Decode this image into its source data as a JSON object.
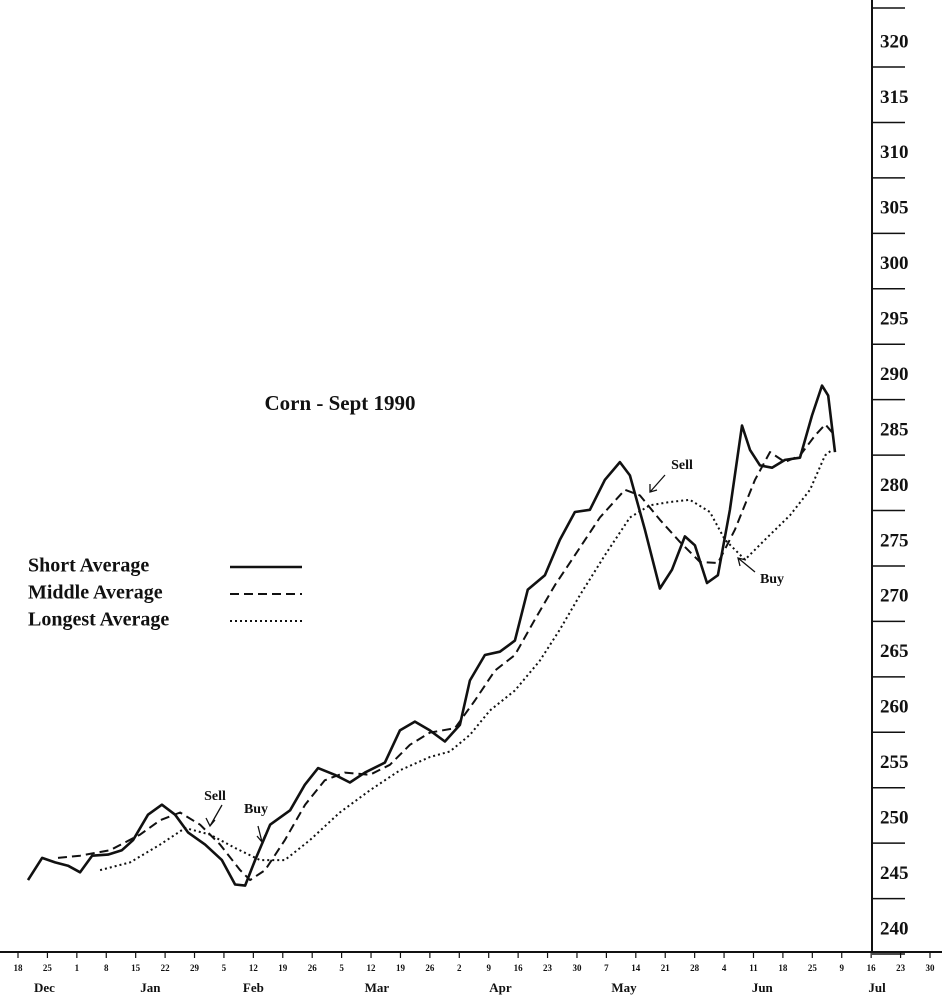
{
  "chart_data": {
    "type": "line",
    "title": "Corn - Sept   1990",
    "ylim": [
      240,
      320
    ],
    "yticks": [
      240,
      245,
      250,
      255,
      260,
      265,
      270,
      275,
      280,
      285,
      290,
      295,
      300,
      305,
      310,
      315,
      320
    ],
    "xlim": [
      0,
      31
    ],
    "xticks": [
      {
        "value": 0,
        "label": "18"
      },
      {
        "value": 1,
        "label": "25"
      },
      {
        "value": 2,
        "label": "1"
      },
      {
        "value": 3,
        "label": "8"
      },
      {
        "value": 4,
        "label": "15"
      },
      {
        "value": 5,
        "label": "22"
      },
      {
        "value": 6,
        "label": "29"
      },
      {
        "value": 7,
        "label": "5"
      },
      {
        "value": 8,
        "label": "12"
      },
      {
        "value": 9,
        "label": "19"
      },
      {
        "value": 10,
        "label": "26"
      },
      {
        "value": 11,
        "label": "5"
      },
      {
        "value": 12,
        "label": "12"
      },
      {
        "value": 13,
        "label": "19"
      },
      {
        "value": 14,
        "label": "26"
      },
      {
        "value": 15,
        "label": "2"
      },
      {
        "value": 16,
        "label": "9"
      },
      {
        "value": 17,
        "label": "16"
      },
      {
        "value": 18,
        "label": "23"
      },
      {
        "value": 19,
        "label": "30"
      },
      {
        "value": 20,
        "label": "7"
      },
      {
        "value": 21,
        "label": "14"
      },
      {
        "value": 22,
        "label": "21"
      },
      {
        "value": 23,
        "label": "28"
      },
      {
        "value": 24,
        "label": "4"
      },
      {
        "value": 25,
        "label": "11"
      },
      {
        "value": 26,
        "label": "18"
      },
      {
        "value": 27,
        "label": "25"
      },
      {
        "value": 28,
        "label": "9"
      },
      {
        "value": 29,
        "label": "16"
      },
      {
        "value": 30,
        "label": "23"
      },
      {
        "value": 31,
        "label": "30"
      }
    ],
    "months": [
      "Dec",
      "Jan",
      "Feb",
      "Mar",
      "Apr",
      "May",
      "Jun",
      "Jul"
    ],
    "annotations": [
      "Sell",
      "Buy",
      "Sell",
      "Buy"
    ],
    "series": [
      {
        "name": "Short Average",
        "color": "#111",
        "style": "solid",
        "x": [
          0.34,
          0.82,
          1.26,
          1.7,
          2.11,
          2.52,
          3.06,
          3.53,
          3.91,
          4.42,
          4.89,
          5.34,
          5.78,
          6.36,
          6.93,
          7.38,
          7.72,
          8.06,
          8.57,
          9.25,
          9.75,
          10.2,
          10.77,
          11.28,
          11.79,
          12.47,
          12.98,
          13.49,
          14.0,
          14.51,
          15.02,
          15.36,
          15.87,
          16.38,
          16.89,
          17.33,
          17.91,
          18.42,
          18.93,
          19.44,
          19.95,
          20.46,
          20.8,
          21.31,
          21.82,
          22.23,
          22.67,
          23.01,
          23.42,
          23.79,
          24.2,
          24.61,
          24.88,
          25.22,
          25.63,
          26.07,
          26.58,
          26.99,
          27.33,
          27.54,
          27.77
        ],
        "values": [
          244.5,
          246.5,
          246.1,
          245.8,
          245.2,
          246.7,
          246.8,
          247.2,
          248.1,
          250.4,
          251.3,
          250.4,
          248.8,
          247.7,
          246.3,
          244.1,
          244.0,
          246.3,
          249.5,
          250.8,
          253.1,
          254.6,
          254.0,
          253.3,
          254.2,
          255.1,
          258.0,
          258.8,
          258.0,
          257.0,
          258.5,
          262.5,
          264.8,
          265.1,
          266.1,
          270.7,
          272.0,
          275.2,
          277.7,
          277.9,
          280.6,
          282.2,
          281.0,
          276.1,
          270.8,
          272.5,
          275.5,
          274.7,
          271.3,
          272.0,
          277.9,
          285.5,
          283.3,
          281.9,
          281.7,
          282.4,
          282.6,
          286.4,
          289.1,
          288.2,
          283.1
        ]
      },
      {
        "name": "Middle Average",
        "color": "#111",
        "style": "dashed",
        "x": [
          1.36,
          2.11,
          3.13,
          4.15,
          4.83,
          5.51,
          6.19,
          6.87,
          7.55,
          7.89,
          8.4,
          9.07,
          9.76,
          10.43,
          11.11,
          11.96,
          12.64,
          13.32,
          14.0,
          14.85,
          15.53,
          16.21,
          16.89,
          17.57,
          18.25,
          18.93,
          19.78,
          20.63,
          21.14,
          21.82,
          22.5,
          23.18,
          23.79,
          24.37,
          25.05,
          25.56,
          26.07,
          26.58,
          27.09,
          27.44,
          27.67
        ],
        "values": [
          246.5,
          246.7,
          247.2,
          248.6,
          249.9,
          250.6,
          249.5,
          247.7,
          245.4,
          244.5,
          245.4,
          248.1,
          251.3,
          253.5,
          254.2,
          254.0,
          254.9,
          256.7,
          257.8,
          258.2,
          260.7,
          263.4,
          264.8,
          268.0,
          271.1,
          273.8,
          277.2,
          279.7,
          279.2,
          277.0,
          275.0,
          273.2,
          273.1,
          276.1,
          280.6,
          283.1,
          282.2,
          282.8,
          284.6,
          285.6,
          284.9
        ]
      },
      {
        "name": "Longest Average",
        "color": "#111",
        "style": "dotted",
        "x": [
          2.79,
          3.81,
          4.83,
          5.68,
          6.53,
          7.38,
          8.23,
          9.07,
          9.92,
          10.94,
          11.96,
          12.98,
          14.0,
          14.68,
          15.36,
          16.04,
          16.89,
          17.74,
          18.42,
          19.1,
          19.95,
          20.8,
          21.48,
          22.16,
          22.84,
          23.52,
          24.03,
          24.71,
          25.39,
          26.24,
          26.92,
          27.43,
          27.67
        ],
        "values": [
          245.4,
          246.1,
          247.7,
          249.2,
          248.6,
          247.4,
          246.3,
          246.3,
          248.1,
          250.6,
          252.6,
          254.4,
          255.6,
          256.1,
          257.6,
          259.8,
          261.6,
          264.3,
          267.1,
          270.2,
          273.8,
          277.2,
          278.3,
          278.6,
          278.8,
          277.7,
          275.2,
          273.4,
          275.2,
          277.4,
          279.7,
          282.8,
          283.3
        ]
      }
    ]
  }
}
